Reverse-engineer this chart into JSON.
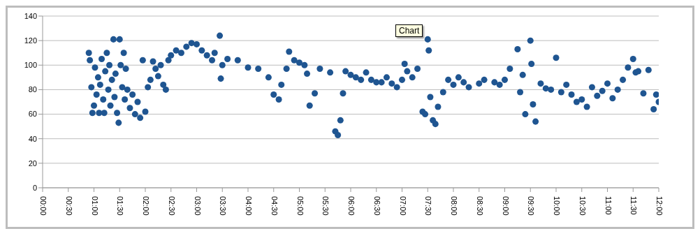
{
  "chart_data": {
    "type": "scatter",
    "marker": "circle",
    "grid": "y",
    "legend": false,
    "annotations": [
      "Chart"
    ],
    "xlim": [
      0,
      12
    ],
    "xticks": [
      {
        "value": 0,
        "label": "00:00"
      },
      {
        "value": 0.5,
        "label": "00:30"
      },
      {
        "value": 1,
        "label": "01:00"
      },
      {
        "value": 1.5,
        "label": "01:30"
      },
      {
        "value": 2,
        "label": "02:00"
      },
      {
        "value": 2.5,
        "label": "02:30"
      },
      {
        "value": 3,
        "label": "03:00"
      },
      {
        "value": 3.5,
        "label": "03:30"
      },
      {
        "value": 4,
        "label": "04:00"
      },
      {
        "value": 4.5,
        "label": "04:30"
      },
      {
        "value": 5,
        "label": "05:00"
      },
      {
        "value": 5.5,
        "label": "05:30"
      },
      {
        "value": 6,
        "label": "06:00"
      },
      {
        "value": 6.5,
        "label": "06:30"
      },
      {
        "value": 7,
        "label": "07:00"
      },
      {
        "value": 7.5,
        "label": "07:30"
      },
      {
        "value": 8,
        "label": "08:00"
      },
      {
        "value": 8.5,
        "label": "08:30"
      },
      {
        "value": 9,
        "label": "09:00"
      },
      {
        "value": 9.5,
        "label": "09:30"
      },
      {
        "value": 10,
        "label": "10:00"
      },
      {
        "value": 10.5,
        "label": "10:30"
      },
      {
        "value": 11,
        "label": "11:00"
      },
      {
        "value": 11.5,
        "label": "11:30"
      },
      {
        "value": 12,
        "label": "12:00"
      }
    ],
    "ylim": [
      0,
      140
    ],
    "yticks": [
      0,
      20,
      40,
      60,
      80,
      100,
      120,
      140
    ],
    "series": [
      {
        "color": "#1f5591",
        "x": [
          0.9,
          0.92,
          0.95,
          0.97,
          1.0,
          1.02,
          1.05,
          1.08,
          1.1,
          1.12,
          1.15,
          1.18,
          1.2,
          1.22,
          1.25,
          1.28,
          1.3,
          1.32,
          1.35,
          1.38,
          1.4,
          1.42,
          1.45,
          1.48,
          1.5,
          1.52,
          1.55,
          1.58,
          1.6,
          1.62,
          1.65,
          1.7,
          1.75,
          1.8,
          1.85,
          1.9,
          1.95,
          2.0,
          2.05,
          2.1,
          2.15,
          2.2,
          2.25,
          2.3,
          2.35,
          2.4,
          2.45,
          2.5,
          2.6,
          2.7,
          2.8,
          2.9,
          3.0,
          3.1,
          3.2,
          3.3,
          3.35,
          3.45,
          3.47,
          3.5,
          3.6,
          3.8,
          4.0,
          4.2,
          4.4,
          4.5,
          4.6,
          4.65,
          4.75,
          4.8,
          4.9,
          5.0,
          5.1,
          5.15,
          5.2,
          5.3,
          5.4,
          5.6,
          5.7,
          5.75,
          5.8,
          5.85,
          5.9,
          6.0,
          6.1,
          6.2,
          6.3,
          6.4,
          6.5,
          6.6,
          6.7,
          6.8,
          6.9,
          7.0,
          7.05,
          7.1,
          7.2,
          7.3,
          7.4,
          7.45,
          7.5,
          7.52,
          7.55,
          7.6,
          7.65,
          7.7,
          7.8,
          7.9,
          8.0,
          8.1,
          8.2,
          8.3,
          8.5,
          8.6,
          8.8,
          8.9,
          9.0,
          9.1,
          9.25,
          9.3,
          9.35,
          9.4,
          9.5,
          9.52,
          9.55,
          9.6,
          9.7,
          9.8,
          9.9,
          10.0,
          10.1,
          10.2,
          10.3,
          10.4,
          10.5,
          10.6,
          10.7,
          10.8,
          10.9,
          11.0,
          11.1,
          11.2,
          11.3,
          11.4,
          11.5,
          11.55,
          11.6,
          11.7,
          11.8,
          11.9,
          11.95,
          12.0
        ],
        "values": [
          110,
          104,
          82,
          61,
          67,
          98,
          76,
          90,
          61,
          84,
          105,
          72,
          61,
          95,
          110,
          80,
          100,
          67,
          88,
          121,
          74,
          93,
          61,
          53,
          121,
          100,
          82,
          110,
          72,
          97,
          80,
          65,
          76,
          60,
          70,
          57,
          104,
          62,
          82,
          88,
          103,
          97,
          91,
          100,
          84,
          80,
          104,
          108,
          112,
          110,
          115,
          118,
          117,
          112,
          108,
          104,
          110,
          124,
          89,
          100,
          105,
          104,
          98,
          97,
          90,
          76,
          72,
          84,
          97,
          111,
          104,
          102,
          100,
          93,
          67,
          77,
          97,
          94,
          46,
          43,
          55,
          77,
          95,
          92,
          90,
          88,
          94,
          88,
          86,
          86,
          90,
          85,
          82,
          88,
          101,
          95,
          90,
          97,
          62,
          60,
          121,
          112,
          74,
          55,
          52,
          66,
          78,
          88,
          84,
          90,
          86,
          82,
          85,
          88,
          86,
          84,
          88,
          97,
          113,
          78,
          92,
          60,
          120,
          101,
          68,
          54,
          85,
          81,
          80,
          106,
          78,
          84,
          76,
          70,
          72,
          66,
          82,
          75,
          79,
          85,
          73,
          80,
          88,
          98,
          105,
          94,
          95,
          77,
          96,
          64,
          76,
          70
        ]
      }
    ]
  }
}
